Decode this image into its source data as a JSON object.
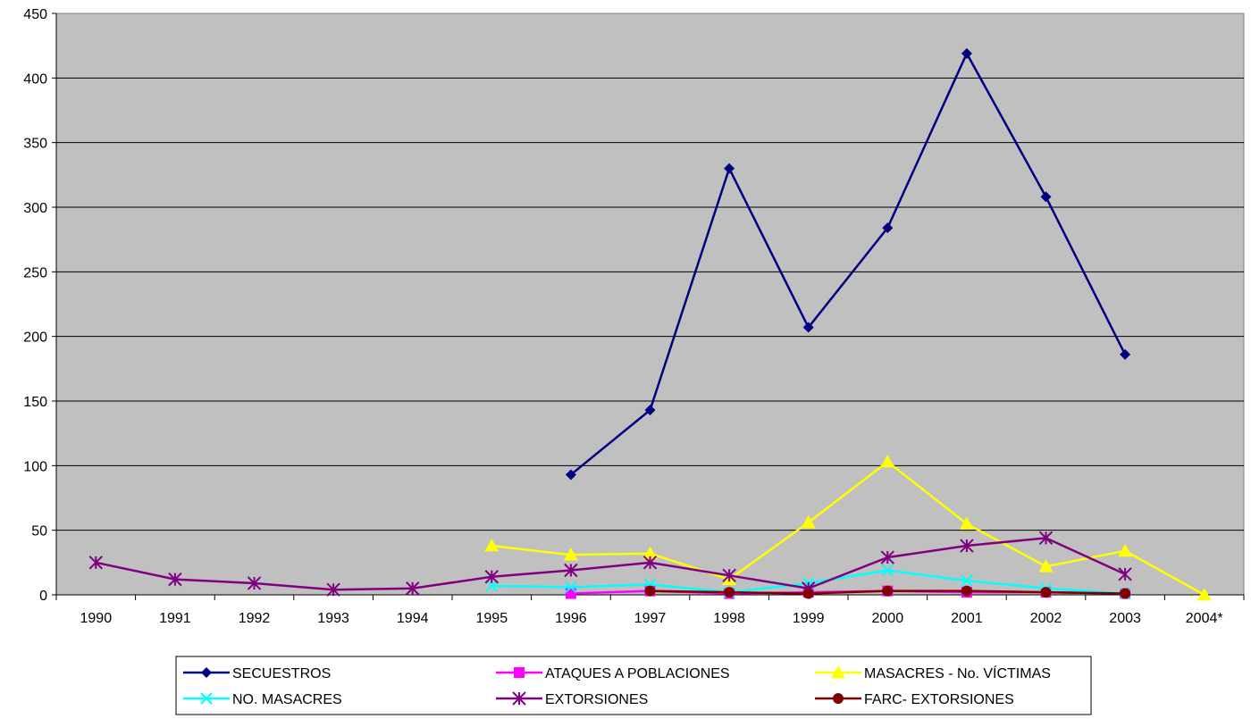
{
  "chart_data": {
    "type": "line",
    "categories": [
      "1990",
      "1991",
      "1992",
      "1993",
      "1994",
      "1995",
      "1996",
      "1997",
      "1998",
      "1999",
      "2000",
      "2001",
      "2002",
      "2003",
      "2004*"
    ],
    "ylim": [
      0,
      450
    ],
    "yticks": [
      0,
      50,
      100,
      150,
      200,
      250,
      300,
      350,
      400,
      450
    ],
    "grid": true,
    "legend_position": "bottom",
    "series": [
      {
        "name": "SECUESTROS",
        "color": "#000080",
        "marker": "diamond",
        "values": [
          null,
          null,
          null,
          null,
          null,
          null,
          93,
          143,
          330,
          207,
          284,
          419,
          308,
          186,
          null
        ]
      },
      {
        "name": "ATAQUES A POBLACIONES",
        "color": "#FF00FF",
        "marker": "square",
        "values": [
          null,
          null,
          null,
          null,
          null,
          null,
          1,
          3,
          1,
          2,
          3,
          2,
          2,
          1,
          null
        ]
      },
      {
        "name": "MASACRES - No. VÍCTIMAS",
        "color": "#FFFF00",
        "marker": "triangle",
        "values": [
          null,
          null,
          null,
          null,
          null,
          38,
          31,
          32,
          12,
          56,
          103,
          55,
          22,
          34,
          0
        ]
      },
      {
        "name": "NO. MASACRES",
        "color": "#00FFFF",
        "marker": "x",
        "values": [
          null,
          null,
          null,
          null,
          null,
          7,
          6,
          8,
          2,
          9,
          19,
          11,
          5,
          1,
          null
        ]
      },
      {
        "name": "EXTORSIONES",
        "color": "#800080",
        "marker": "star",
        "values": [
          25,
          12,
          9,
          4,
          5,
          14,
          19,
          25,
          15,
          5,
          29,
          38,
          44,
          16,
          null
        ]
      },
      {
        "name": "FARC- EXTORSIONES",
        "color": "#800000",
        "marker": "circle",
        "values": [
          null,
          null,
          null,
          null,
          null,
          null,
          null,
          3,
          2,
          1,
          3,
          3,
          2,
          1,
          null
        ]
      }
    ]
  }
}
